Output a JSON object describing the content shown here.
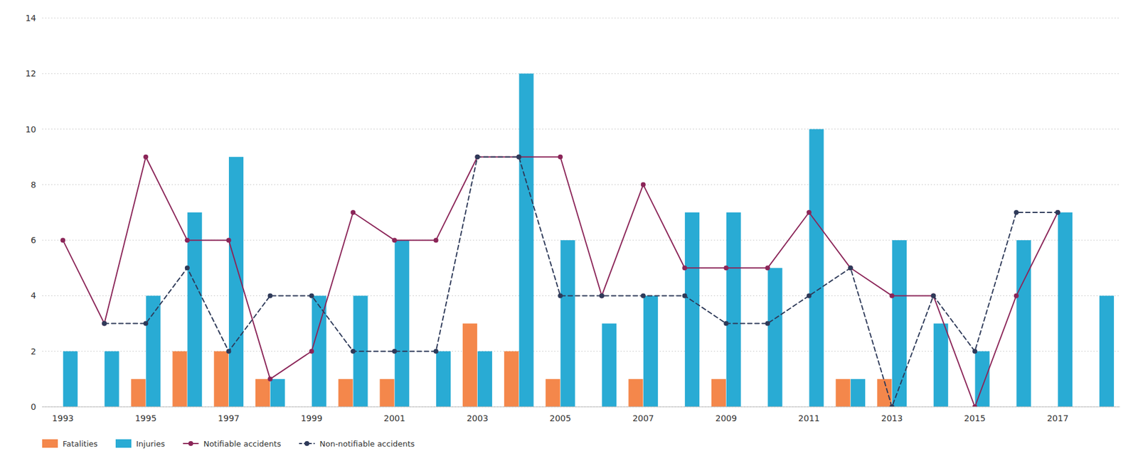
{
  "chart_data": {
    "type": "bar",
    "categories": [
      "1993",
      null,
      "1995",
      null,
      "1997",
      null,
      "1999",
      null,
      "2001",
      null,
      "2003",
      null,
      "2005",
      null,
      "2007",
      null,
      "2009",
      null,
      "2011",
      null,
      "2013",
      null,
      "2015",
      null,
      "2017",
      null
    ],
    "series": [
      {
        "name": "Fatalities",
        "type": "bar",
        "color": "#F4874B",
        "values": [
          0,
          0,
          1,
          2,
          2,
          1,
          0,
          1,
          1,
          0,
          3,
          2,
          1,
          0,
          1,
          0,
          1,
          0,
          0,
          1,
          1,
          0,
          0,
          0,
          0,
          0
        ]
      },
      {
        "name": "Injuries",
        "type": "bar",
        "color": "#29ABD4",
        "values": [
          2,
          2,
          4,
          7,
          9,
          1,
          4,
          4,
          6,
          2,
          2,
          12,
          6,
          3,
          4,
          7,
          7,
          5,
          10,
          1,
          6,
          3,
          2,
          6,
          7,
          4
        ]
      },
      {
        "name": "Notifiable accidents",
        "type": "line",
        "color": "#8B2558",
        "marker": "circle",
        "line_style": "solid",
        "values": [
          6,
          3,
          9,
          6,
          6,
          1,
          2,
          7,
          6,
          6,
          9,
          9,
          9,
          4,
          8,
          5,
          5,
          5,
          7,
          5,
          4,
          4,
          0,
          4,
          7,
          null
        ]
      },
      {
        "name": "Non-notifiable accidents",
        "type": "line",
        "color": "#2E3A59",
        "marker": "circle",
        "line_style": "dashed",
        "values": [
          null,
          3,
          3,
          5,
          2,
          4,
          4,
          2,
          2,
          2,
          9,
          9,
          4,
          4,
          4,
          4,
          3,
          3,
          4,
          5,
          0,
          4,
          2,
          7,
          7,
          null
        ]
      }
    ],
    "ylim": [
      0,
      14
    ],
    "yticks": [
      0,
      2,
      4,
      6,
      8,
      10,
      12,
      14
    ],
    "grid": true,
    "legend": "lower left"
  }
}
